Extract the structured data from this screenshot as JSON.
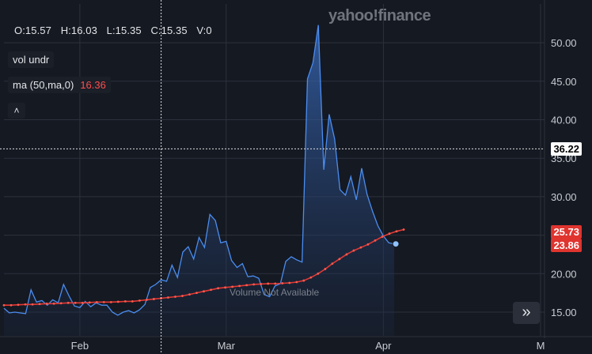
{
  "logo": {
    "text": "yahoo!finance"
  },
  "ohlc": {
    "open": "O:15.57",
    "high": "H:16.03",
    "low": "L:15.35",
    "close": "C:15.35",
    "volume": "V:0"
  },
  "legend": {
    "vol": "vol undr",
    "ma_label": "ma (50,ma,0)",
    "ma_value": "16.36",
    "collapse_glyph": "˄"
  },
  "watermark": "Volume Not Available",
  "price_labels": {
    "crosshair": "36.22",
    "ma_last": "25.73",
    "last": "23.86"
  },
  "scroll_button": {
    "glyph": "»"
  },
  "colors": {
    "price_line": "#4a8df0",
    "ma_line": "#e53935",
    "background": "#151922"
  },
  "chart_data": {
    "type": "line",
    "y_ticks": [
      15,
      20,
      25,
      30,
      35,
      40,
      45,
      50
    ],
    "y_tick_labels": [
      "15.00",
      "20.00",
      "25.00",
      "30.00",
      "35.00",
      "40.00",
      "45.00",
      "50.00"
    ],
    "x_ticks": [
      {
        "label": "Feb",
        "index": 14
      },
      {
        "label": "Mar",
        "index": 41
      },
      {
        "label": "Apr",
        "index": 70
      },
      {
        "label": "M",
        "index": 99
      }
    ],
    "crosshair": {
      "index": 29,
      "price": 36.22
    },
    "price": [
      15.5,
      14.9,
      15.0,
      14.9,
      14.8,
      17.9,
      16.3,
      16.5,
      15.9,
      16.6,
      16.2,
      18.6,
      17.1,
      15.8,
      15.6,
      16.4,
      15.7,
      16.2,
      15.9,
      15.9,
      15.0,
      14.6,
      15.0,
      15.2,
      14.9,
      15.3,
      16.0,
      18.2,
      18.6,
      19.2,
      19.0,
      21.1,
      19.5,
      22.8,
      23.5,
      21.9,
      24.7,
      23.4,
      27.7,
      26.9,
      24.0,
      24.2,
      21.7,
      20.8,
      21.3,
      19.6,
      19.7,
      19.4,
      17.3,
      17.0,
      18.4,
      18.7,
      21.6,
      22.2,
      21.8,
      21.5,
      45.3,
      47.4,
      52.3,
      33.5,
      40.7,
      37.5,
      30.9,
      30.2,
      32.6,
      29.6,
      33.7,
      30.3,
      28.1,
      26.2,
      24.9,
      24.0,
      23.86
    ],
    "ma": [
      15.9,
      15.9,
      15.95,
      16.0,
      16.0,
      16.05,
      16.1,
      16.1,
      16.15,
      16.2,
      16.2,
      16.2,
      16.25,
      16.3,
      16.3,
      16.3,
      16.35,
      16.4,
      16.4,
      16.5,
      16.6,
      16.7,
      16.8,
      16.9,
      17.0,
      17.1,
      17.3,
      17.5,
      17.7,
      17.9,
      18.1,
      18.2,
      18.3,
      18.4,
      18.5,
      18.6,
      18.65,
      18.7,
      18.7,
      18.75,
      18.8,
      18.9,
      19.1,
      19.5,
      20.0,
      20.6,
      21.3,
      21.9,
      22.5,
      23.0,
      23.4,
      23.8,
      24.3,
      24.8,
      25.2,
      25.5,
      25.73
    ]
  }
}
